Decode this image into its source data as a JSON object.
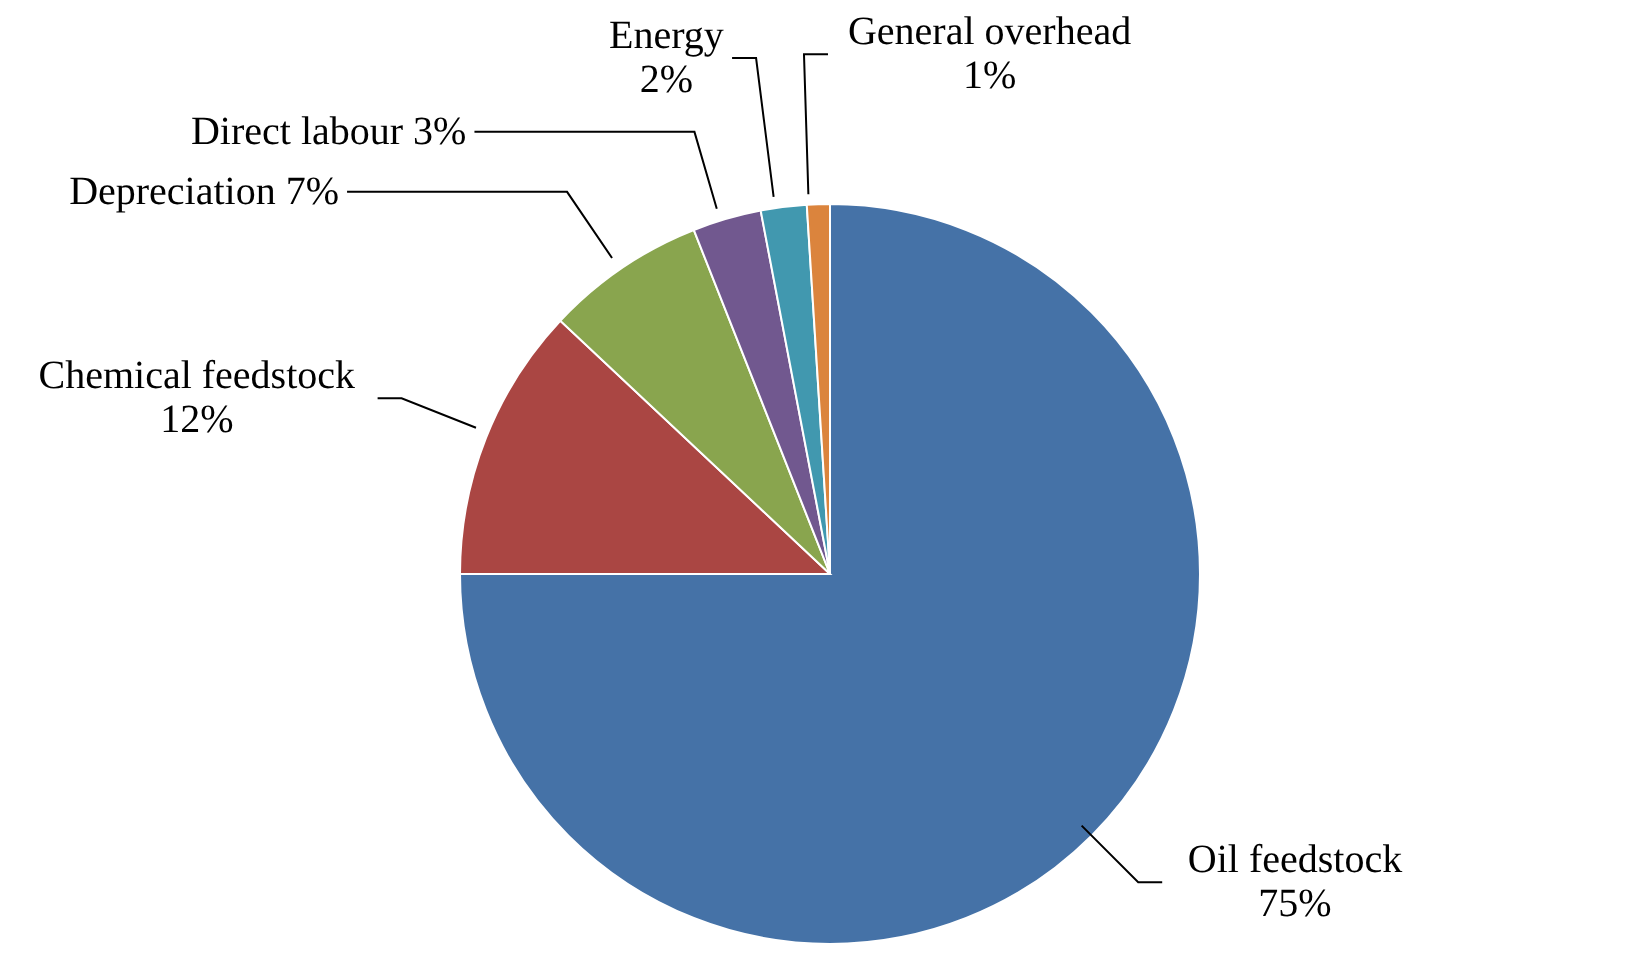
{
  "chart_data": {
    "type": "pie",
    "categories": [
      "Oil feedstock",
      "Chemical feedstock",
      "Depreciation",
      "Direct labour",
      "Energy",
      "General overhead"
    ],
    "values": [
      75,
      12,
      7,
      3,
      2,
      1
    ],
    "colors": [
      "#4572a7",
      "#aa4643",
      "#89a54e",
      "#71588f",
      "#4198af",
      "#db843d"
    ],
    "value_labels": [
      "75%",
      "12%",
      "7%",
      "3%",
      "2%",
      "1%"
    ]
  }
}
